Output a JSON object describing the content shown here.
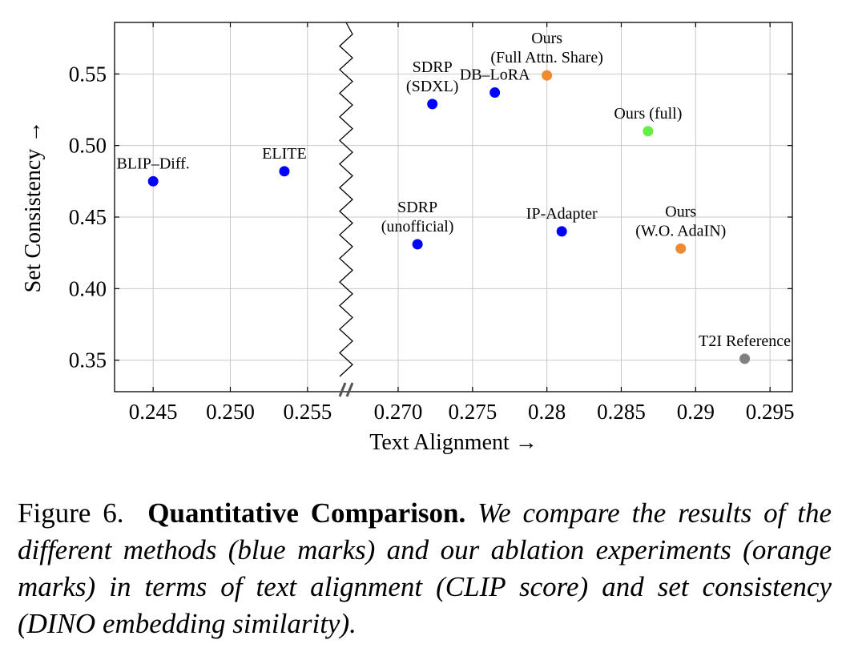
{
  "chart_data": {
    "type": "scatter",
    "xlabel": "Text Alignment →",
    "ylabel": "Set Consistency →",
    "x_axis_break": true,
    "x_segments": [
      {
        "range": [
          0.2425,
          0.2575
        ],
        "ticks": [
          0.245,
          0.25,
          0.255
        ],
        "tick_labels": [
          "0.245",
          "0.250",
          "0.255"
        ]
      },
      {
        "range": [
          0.2665,
          0.2965
        ],
        "ticks": [
          0.27,
          0.275,
          0.28,
          0.285,
          0.29,
          0.295
        ],
        "tick_labels": [
          "0.270",
          "0.275",
          "0.28",
          "0.285",
          "0.29",
          "0.295"
        ]
      }
    ],
    "ylim": [
      0.328,
      0.586
    ],
    "yticks": [
      0.35,
      0.4,
      0.45,
      0.5,
      0.55
    ],
    "ytick_labels": [
      "0.35",
      "0.40",
      "0.45",
      "0.50",
      "0.55"
    ],
    "grid": true,
    "points": [
      {
        "label": [
          "BLIP–Diff."
        ],
        "x": 0.245,
        "y": 0.475,
        "color": "#0000ff",
        "label_pos": "above"
      },
      {
        "label": [
          "ELITE"
        ],
        "x": 0.2535,
        "y": 0.482,
        "color": "#0000ff",
        "label_pos": "above"
      },
      {
        "label": [
          "SDRP",
          "(SDXL)"
        ],
        "x": 0.2723,
        "y": 0.529,
        "color": "#0000ff",
        "label_pos": "above"
      },
      {
        "label": [
          "DB–LoRA"
        ],
        "x": 0.2765,
        "y": 0.537,
        "color": "#0000ff",
        "label_pos": "above"
      },
      {
        "label": [
          "Ours",
          "(Full Attn. Share)"
        ],
        "x": 0.28,
        "y": 0.549,
        "color": "#f08a30",
        "label_pos": "above"
      },
      {
        "label": [
          "Ours (full)"
        ],
        "x": 0.2868,
        "y": 0.51,
        "color": "#66ee44",
        "label_pos": "above"
      },
      {
        "label": [
          "SDRP",
          "(unofficial)"
        ],
        "x": 0.2713,
        "y": 0.431,
        "color": "#0000ff",
        "label_pos": "above"
      },
      {
        "label": [
          "IP-Adapter"
        ],
        "x": 0.281,
        "y": 0.44,
        "color": "#0000ff",
        "label_pos": "above"
      },
      {
        "label": [
          "Ours",
          "(W.O. AdaIN)"
        ],
        "x": 0.289,
        "y": 0.428,
        "color": "#f08a30",
        "label_pos": "above"
      },
      {
        "label": [
          "T2I Reference"
        ],
        "x": 0.2933,
        "y": 0.351,
        "color": "#808080",
        "label_pos": "above"
      }
    ]
  },
  "caption": {
    "figure_label": "Figure 6.",
    "title": "Quantitative Comparison.",
    "text": "We compare the results of the different methods (blue marks) and our ablation experiments (orange marks) in terms of text alignment (CLIP score) and set consistency (DINO embedding similarity)."
  }
}
